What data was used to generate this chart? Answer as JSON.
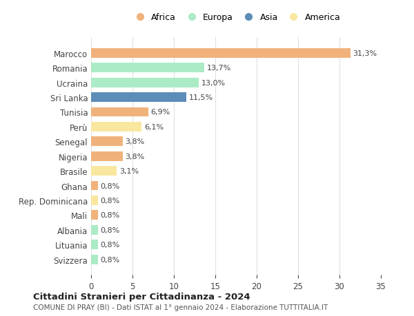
{
  "countries": [
    "Marocco",
    "Romania",
    "Ucraina",
    "Sri Lanka",
    "Tunisia",
    "Perù",
    "Senegal",
    "Nigeria",
    "Brasile",
    "Ghana",
    "Rep. Dominicana",
    "Mali",
    "Albania",
    "Lituania",
    "Svizzera"
  ],
  "values": [
    31.3,
    13.7,
    13.0,
    11.5,
    6.9,
    6.1,
    3.8,
    3.8,
    3.1,
    0.8,
    0.8,
    0.8,
    0.8,
    0.8,
    0.8
  ],
  "labels": [
    "31,3%",
    "13,7%",
    "13,0%",
    "11,5%",
    "6,9%",
    "6,1%",
    "3,8%",
    "3,8%",
    "3,1%",
    "0,8%",
    "0,8%",
    "0,8%",
    "0,8%",
    "0,8%",
    "0,8%"
  ],
  "continents": [
    "Africa",
    "Europa",
    "Europa",
    "Asia",
    "Africa",
    "America",
    "Africa",
    "Africa",
    "America",
    "Africa",
    "America",
    "Africa",
    "Europa",
    "Europa",
    "Europa"
  ],
  "continent_colors": {
    "Africa": "#F0B27A",
    "Europa": "#ABEBC6",
    "Asia": "#5B8DB8",
    "America": "#F9E79F"
  },
  "legend_order": [
    "Africa",
    "Europa",
    "Asia",
    "America"
  ],
  "title": "Cittadini Stranieri per Cittadinanza - 2024",
  "subtitle": "COMUNE DI PRAY (BI) - Dati ISTAT al 1° gennaio 2024 - Elaborazione TUTTITALIA.IT",
  "xlim": [
    0,
    35
  ],
  "xticks": [
    0,
    5,
    10,
    15,
    20,
    25,
    30,
    35
  ],
  "background_color": "#ffffff",
  "grid_color": "#e0e0e0"
}
